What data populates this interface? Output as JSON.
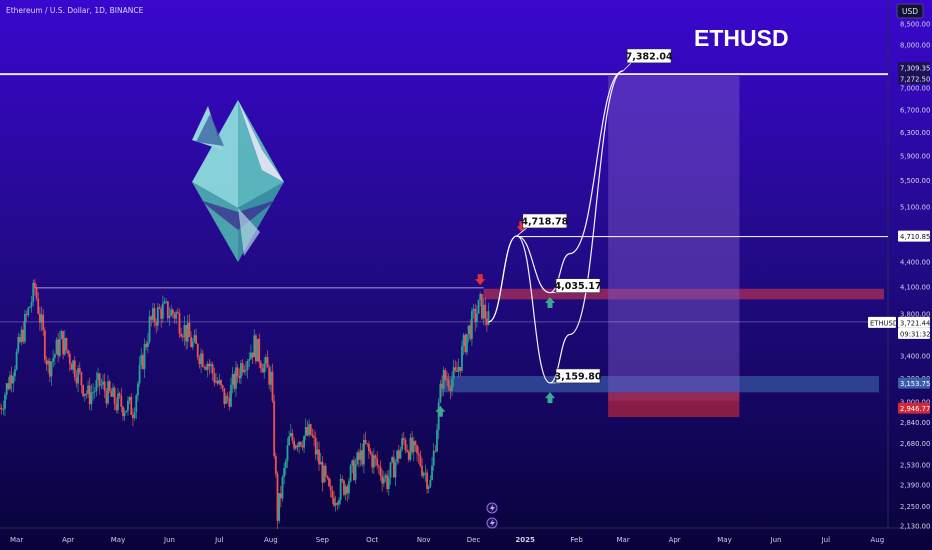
{
  "header": {
    "symbol_line": "Ethereum / U.S. Dollar, 1D, BINANCE",
    "currency_button": "USD",
    "big_title": "ETHUSD"
  },
  "price_axis": {
    "ticks": [
      8500,
      8000,
      7000,
      6700,
      6300,
      5900,
      5500,
      5100,
      4700,
      4400,
      4100,
      3800,
      3600,
      3400,
      3200,
      3000,
      2840,
      2680,
      2530,
      2390,
      2250,
      2130
    ],
    "tick_labels": [
      "8,500.00",
      "8,000.00",
      "7,000.00",
      "6,700.00",
      "6,300.00",
      "5,900.00",
      "5,500.00",
      "5,100.00",
      "4,700.00",
      "4,400.00",
      "4,100.00",
      "3,800.00",
      "3,600.00",
      "3,400.00",
      "3,200.00",
      "3,000.00",
      "2,840.00",
      "2,680.00",
      "2,530.00",
      "2,390.00",
      "2,250.00",
      "2,130.00"
    ],
    "badges": {
      "top_level_1": "7,309.35",
      "top_level_2": "7,272.50",
      "resistance": "4,710.85",
      "last_symbol": "ETHUSD",
      "last_price": "3,721.44",
      "countdown": "09:31:32",
      "support": "3,153.75",
      "stop": "2,946.77"
    }
  },
  "time_axis": {
    "labels": [
      "Mar",
      "Apr",
      "May",
      "Jun",
      "Jul",
      "Aug",
      "Sep",
      "Oct",
      "Nov",
      "Dec",
      "2025",
      "Feb",
      "Mar",
      "Apr",
      "May",
      "Jun",
      "Jul",
      "Aug"
    ],
    "dates": [
      "2024-03-01",
      "2024-04-01",
      "2024-05-01",
      "2024-06-01",
      "2024-07-01",
      "2024-08-01",
      "2024-09-01",
      "2024-10-01",
      "2024-11-01",
      "2024-12-01",
      "2025-01-01",
      "2025-02-01",
      "2025-03-01",
      "2025-04-01",
      "2025-05-01",
      "2025-06-01",
      "2025-07-01",
      "2025-08-01"
    ]
  },
  "chart_data": {
    "type": "line",
    "title": "ETHUSD",
    "subtitle": "Ethereum / U.S. Dollar, 1D, BINANCE",
    "xlabel": "",
    "ylabel": "",
    "ylim": [
      2100,
      9000
    ],
    "x_range": [
      "2024-02-20",
      "2025-08-05"
    ],
    "y_scale": "log",
    "grid": false,
    "series": [
      {
        "role": "price",
        "x": [
          "2024-02-20",
          "2024-03-01",
          "2024-03-06",
          "2024-03-12",
          "2024-03-20",
          "2024-03-28",
          "2024-04-05",
          "2024-04-13",
          "2024-04-20",
          "2024-04-30",
          "2024-05-10",
          "2024-05-20",
          "2024-05-27",
          "2024-06-05",
          "2024-06-15",
          "2024-06-24",
          "2024-07-05",
          "2024-07-15",
          "2024-07-22",
          "2024-08-01",
          "2024-08-05",
          "2024-08-12",
          "2024-08-25",
          "2024-09-06",
          "2024-09-15",
          "2024-09-27",
          "2024-10-10",
          "2024-10-20",
          "2024-10-30",
          "2024-11-05",
          "2024-11-12",
          "2024-11-20",
          "2024-11-27",
          "2024-12-05",
          "2024-12-10"
        ],
        "y": [
          2950,
          3400,
          3700,
          4090,
          3300,
          3550,
          3300,
          3050,
          3150,
          2990,
          2950,
          3700,
          3850,
          3800,
          3500,
          3350,
          3000,
          3350,
          3500,
          3200,
          2200,
          2700,
          2750,
          2300,
          2400,
          2650,
          2420,
          2700,
          2550,
          2400,
          3200,
          3200,
          3600,
          3900,
          3721
        ]
      },
      {
        "role": "projection_a",
        "x": [
          "2024-12-10",
          "2024-12-27",
          "2025-01-16",
          "2025-01-28",
          "2025-03-01"
        ],
        "y": [
          3721,
          4718.78,
          4035.17,
          4500,
          7382.04
        ]
      },
      {
        "role": "projection_b",
        "x": [
          "2024-12-10",
          "2024-12-27",
          "2025-01-16",
          "2025-01-28",
          "2025-03-01"
        ],
        "y": [
          3721,
          4718.78,
          3159.8,
          3600,
          7382.04
        ]
      }
    ],
    "levels": [
      {
        "role": "top_target",
        "y": 7309.35
      },
      {
        "role": "resistance",
        "y": 4710.85
      },
      {
        "role": "previous_high",
        "y": 4090
      },
      {
        "role": "last_price",
        "y": 3721.44
      }
    ],
    "zones": [
      {
        "role": "supply",
        "x": [
          "2024-12-07",
          "2025-08-05"
        ],
        "y": [
          3960,
          4080
        ],
        "color": "#c2334f"
      },
      {
        "role": "demand",
        "x": [
          "2024-11-12",
          "2025-08-02"
        ],
        "y": [
          3080,
          3220
        ],
        "color": "#3a5fa8"
      },
      {
        "role": "target",
        "x": [
          "2025-02-20",
          "2025-05-10"
        ],
        "y": [
          3010,
          7270
        ],
        "color": "#7e5cc8"
      },
      {
        "role": "stop",
        "x": [
          "2025-02-20",
          "2025-05-10"
        ],
        "y": [
          2880,
          3080
        ],
        "color": "#b8283d"
      }
    ],
    "annotations": [
      {
        "text": "7,382.04",
        "x": "2025-03-01",
        "y": 7382.04
      },
      {
        "text": "4,718.78",
        "x": "2024-12-27",
        "y": 4718.78
      },
      {
        "text": "4,035.17",
        "x": "2025-01-16",
        "y": 4035.17
      },
      {
        "text": "3,159.80",
        "x": "2025-01-16",
        "y": 3159.8
      }
    ],
    "markers": [
      {
        "kind": "down-arrow",
        "x": "2024-12-05",
        "y": 4180,
        "color": "#e0303a"
      },
      {
        "kind": "down-arrow",
        "x": "2024-12-30",
        "y": 4830,
        "color": "#e0303a"
      },
      {
        "kind": "up-arrow",
        "x": "2025-01-16",
        "y": 3930,
        "color": "#3fa595"
      },
      {
        "kind": "up-arrow",
        "x": "2025-01-16",
        "y": 3040,
        "color": "#3fa595"
      },
      {
        "kind": "up-arrow",
        "x": "2024-11-11",
        "y": 2930,
        "color": "#3fa595"
      }
    ]
  },
  "colors": {
    "bg_top": "#3a07ce",
    "bg_bottom": "#08033a",
    "up_candle": "#26a69a",
    "down_candle": "#ef5350",
    "eth_logo": "#7ed6d6"
  }
}
